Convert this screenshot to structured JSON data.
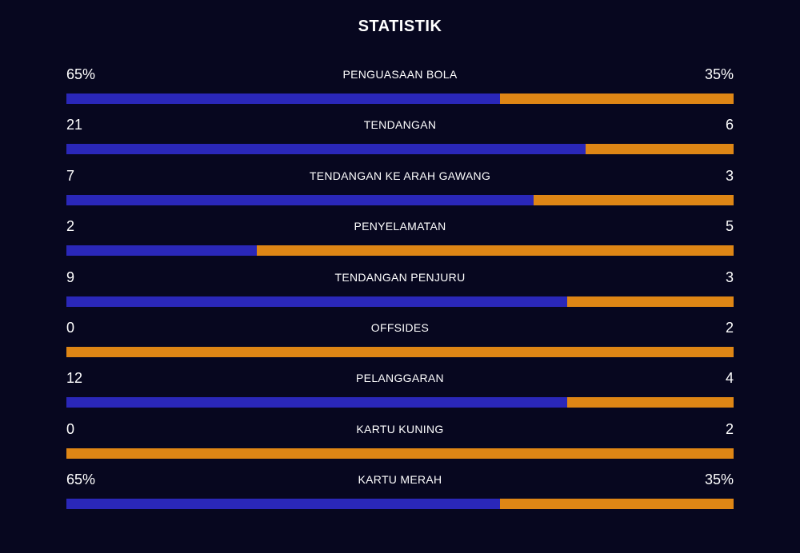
{
  "title": "STATISTIK",
  "colors": {
    "home": "#2a27b8",
    "away": "#de8615",
    "background": "#07071f",
    "text": "#ffffff"
  },
  "stats": [
    {
      "label": "PENGUASAAN BOLA",
      "home": "65%",
      "away": "35%",
      "home_share": 0.65
    },
    {
      "label": "TENDANGAN",
      "home": "21",
      "away": "6",
      "home_share": 0.7778
    },
    {
      "label": "TENDANGAN KE ARAH GAWANG",
      "home": "7",
      "away": "3",
      "home_share": 0.7
    },
    {
      "label": "PENYELAMATAN",
      "home": "2",
      "away": "5",
      "home_share": 0.2857
    },
    {
      "label": "TENDANGAN PENJURU",
      "home": "9",
      "away": "3",
      "home_share": 0.75
    },
    {
      "label": "OFFSIDES",
      "home": "0",
      "away": "2",
      "home_share": 0
    },
    {
      "label": "PELANGGARAN",
      "home": "12",
      "away": "4",
      "home_share": 0.75
    },
    {
      "label": "KARTU KUNING",
      "home": "0",
      "away": "2",
      "home_share": 0
    },
    {
      "label": "KARTU MERAH",
      "home": "65%",
      "away": "35%",
      "home_share": 0.65
    }
  ]
}
